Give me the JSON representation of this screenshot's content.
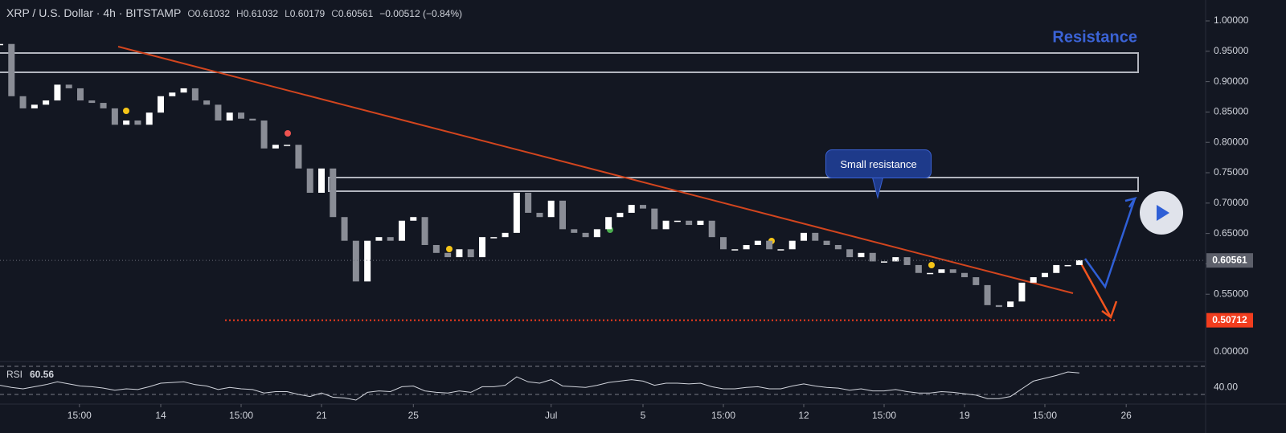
{
  "header": {
    "title": "XRP / U.S. Dollar · 4h · BITSTAMP",
    "ohlc": [
      {
        "key": "O",
        "value": "0.61032"
      },
      {
        "key": "H",
        "value": "0.61032"
      },
      {
        "key": "L",
        "value": "0.60179"
      },
      {
        "key": "C",
        "value": "0.60561"
      }
    ],
    "change": "−0.00512 (−0.84%)"
  },
  "annotations": {
    "resistance": "Resistance",
    "small_resistance": "Small resistance"
  },
  "chart_data": {
    "type": "candlestick",
    "x": [
      0,
      12,
      24,
      36,
      48,
      60,
      72,
      84,
      96,
      108,
      120,
      132,
      144,
      156,
      168,
      180,
      192,
      204,
      216,
      228,
      240,
      252,
      264,
      276,
      288,
      300,
      312,
      324,
      336,
      348,
      360,
      372,
      384,
      396,
      408,
      420,
      432,
      444,
      456,
      468,
      480,
      492,
      504,
      516,
      528,
      540,
      552,
      564,
      576,
      588,
      600,
      612,
      624,
      636,
      648,
      660,
      672,
      684,
      696,
      708,
      720,
      732,
      744,
      756,
      768,
      780,
      792,
      804,
      816,
      828,
      840,
      852,
      864,
      876,
      888,
      900,
      912,
      924,
      936,
      948,
      960,
      972,
      984,
      996,
      1008,
      1020,
      1032,
      1044,
      1056,
      1068,
      1080,
      1092,
      1104,
      1116,
      1128
    ],
    "series": [
      {
        "name": "XRP / U.S. Dollar",
        "up_color": "#ffffff",
        "down_color": "#8a8d96",
        "values": [
          0.962,
          0.876,
          0.856,
          0.862,
          0.869,
          0.895,
          0.889,
          0.869,
          0.865,
          0.856,
          0.829,
          0.836,
          0.829,
          0.849,
          0.876,
          0.882,
          0.889,
          0.869,
          0.862,
          0.836,
          0.849,
          0.839,
          0.836,
          0.79,
          0.796,
          0.796,
          0.757,
          0.717,
          0.757,
          0.677,
          0.638,
          0.571,
          0.638,
          0.644,
          0.638,
          0.671,
          0.677,
          0.631,
          0.618,
          0.611,
          0.624,
          0.611,
          0.644,
          0.644,
          0.651,
          0.717,
          0.684,
          0.677,
          0.704,
          0.657,
          0.651,
          0.644,
          0.657,
          0.677,
          0.684,
          0.697,
          0.691,
          0.657,
          0.671,
          0.671,
          0.664,
          0.671,
          0.644,
          0.624,
          0.624,
          0.631,
          0.638,
          0.624,
          0.624,
          0.638,
          0.651,
          0.638,
          0.631,
          0.624,
          0.611,
          0.618,
          0.604,
          0.604,
          0.611,
          0.598,
          0.585,
          0.585,
          0.591,
          0.585,
          0.578,
          0.565,
          0.532,
          0.529,
          0.538,
          0.569,
          0.578,
          0.585,
          0.598,
          0.598,
          0.606
        ]
      }
    ],
    "xlim": [
      0,
      1260
    ],
    "xticks": [
      {
        "value": 83,
        "label": "15:00"
      },
      {
        "value": 168,
        "label": "14"
      },
      {
        "value": 252,
        "label": "15:00"
      },
      {
        "value": 336,
        "label": "21"
      },
      {
        "value": 432,
        "label": "25"
      },
      {
        "value": 576,
        "label": "Jul"
      },
      {
        "value": 672,
        "label": "5"
      },
      {
        "value": 756,
        "label": "15:00"
      },
      {
        "value": 840,
        "label": "12"
      },
      {
        "value": 924,
        "label": "15:00"
      },
      {
        "value": 1008,
        "label": "19"
      },
      {
        "value": 1092,
        "label": "15:00"
      },
      {
        "value": 1177,
        "label": "26"
      }
    ],
    "ylim": [
      0.4392,
      1.0344
    ],
    "yticks": [
      {
        "value": 0.55,
        "label": "0.55000"
      },
      {
        "value": 0.6,
        "label": "0.60000"
      },
      {
        "value": 0.65,
        "label": "0.65000"
      },
      {
        "value": 0.7,
        "label": "0.70000"
      },
      {
        "value": 0.75,
        "label": "0.75000"
      },
      {
        "value": 0.8,
        "label": "0.80000"
      },
      {
        "value": 0.85,
        "label": "0.85000"
      },
      {
        "value": 0.9,
        "label": "0.90000"
      },
      {
        "value": 0.95,
        "label": "0.95000"
      },
      {
        "value": 1,
        "label": "1.00000"
      }
    ],
    "scale_bottom_label": "0.00000",
    "price_lines": [
      {
        "value": 0.60561,
        "label": "0.60561",
        "color": "#5d606b",
        "line_color": "#6a6d78"
      },
      {
        "value": 0.50712,
        "label": "0.50712",
        "color": "#f23d1e",
        "line_color": "#f23d1e"
      }
    ],
    "rsi": {
      "name": "RSI",
      "color": "#d1d4dc",
      "ylim": [
        19.7,
        74.6
      ],
      "yticks": [
        {
          "value": 40,
          "label": "40.00"
        }
      ],
      "bands": [
        30,
        70
      ],
      "values": [
        43,
        40,
        38,
        41,
        44,
        48,
        45,
        42,
        41,
        39,
        36,
        38,
        37,
        41,
        46,
        47,
        48,
        44,
        42,
        37,
        40,
        38,
        37,
        32,
        34,
        34,
        30,
        27,
        32,
        26,
        25,
        22,
        33,
        35,
        34,
        41,
        42,
        35,
        33,
        32,
        35,
        33,
        41,
        41,
        43,
        55,
        48,
        46,
        51,
        42,
        41,
        40,
        43,
        47,
        49,
        51,
        49,
        43,
        46,
        46,
        45,
        46,
        41,
        38,
        38,
        40,
        41,
        38,
        38,
        42,
        45,
        42,
        40,
        39,
        36,
        38,
        35,
        35,
        37,
        34,
        32,
        32,
        34,
        33,
        31,
        29,
        24,
        24,
        27,
        38,
        49,
        53,
        57,
        62,
        60.56
      ]
    }
  }
}
